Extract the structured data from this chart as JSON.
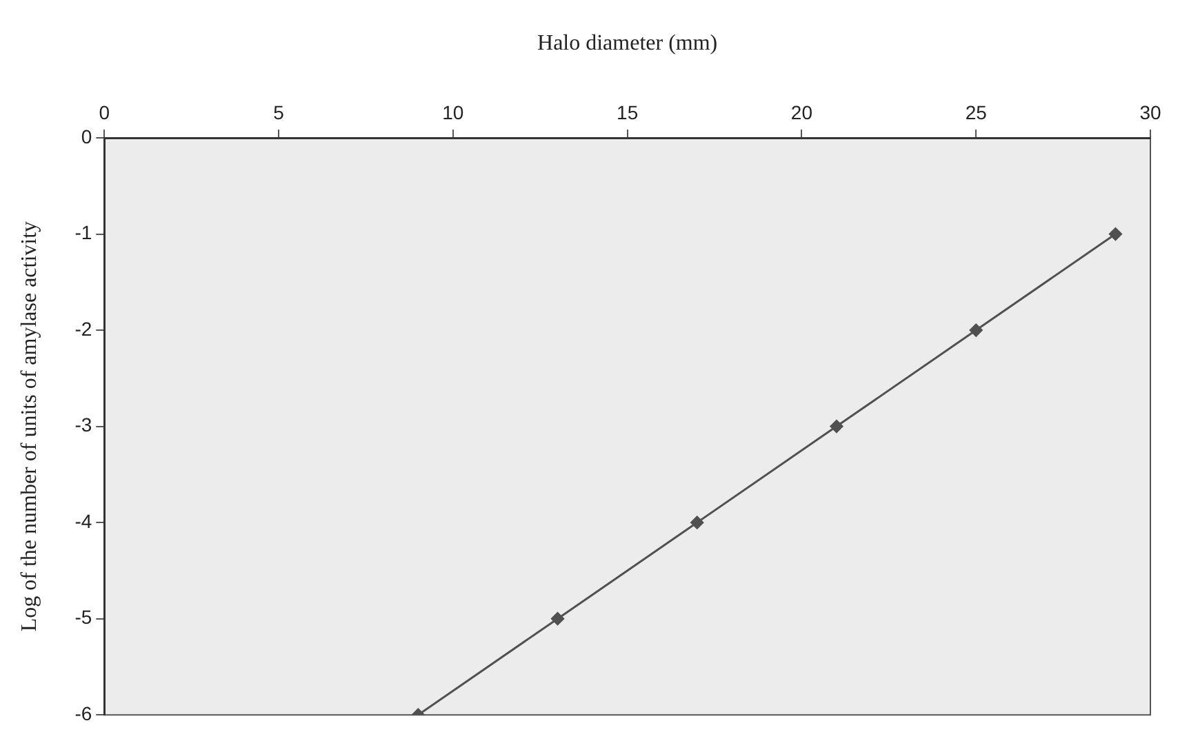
{
  "chart_data": {
    "type": "line",
    "xlabel": "Halo diameter (mm)",
    "ylabel": "Log of the number of units of amylase activity",
    "x": [
      9,
      13,
      17,
      21,
      25,
      29
    ],
    "series": [
      {
        "color": "#505050",
        "values": [
          -6,
          -5,
          -4,
          -3,
          -2,
          -1
        ]
      }
    ],
    "xlim": [
      0,
      30
    ],
    "xticks": [
      0,
      5,
      10,
      15,
      20,
      25,
      30
    ],
    "ylim": [
      -6,
      0
    ],
    "yticks": [
      0,
      -1,
      -2,
      -3,
      -4,
      -5,
      -6
    ],
    "grid": false,
    "legend": false,
    "marker": "diamond",
    "line_style": "solid"
  }
}
